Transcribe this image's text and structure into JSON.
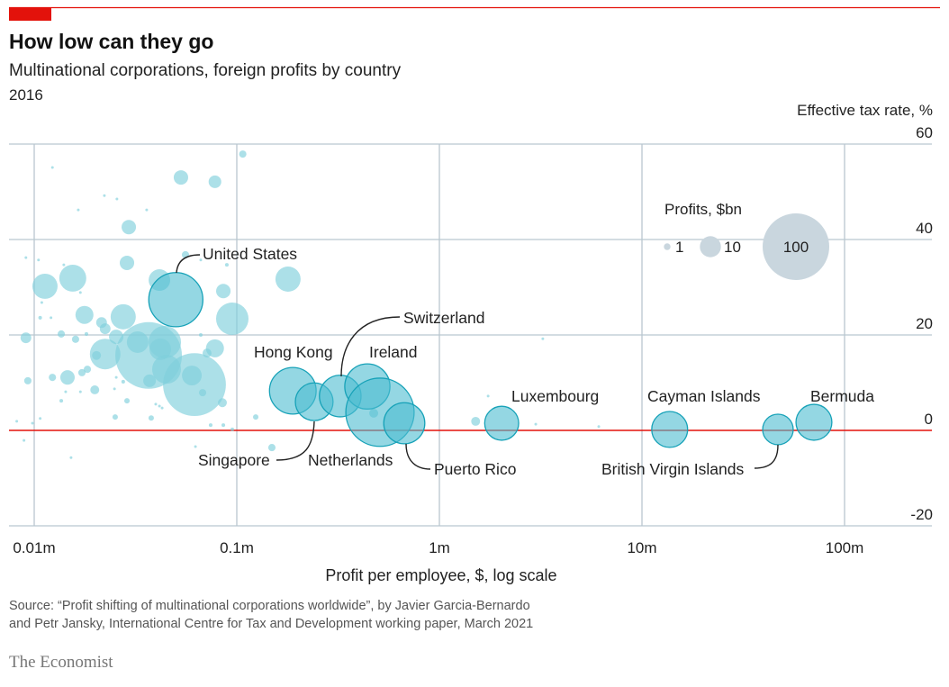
{
  "header": {
    "title": "How low can they go",
    "subtitle": "Multinational corporations, foreign profits by country",
    "year": "2016"
  },
  "colors": {
    "accent": "#e3120b",
    "bubble": "#7fd0dc",
    "bubble_highlight": "#4dbdd0",
    "bubble_stroke": "#17a2b8",
    "legend": "#c9d6de",
    "grid": "#b9c7d0"
  },
  "chart_data": {
    "type": "scatter",
    "title": "How low can they go",
    "xlabel": "Profit per employee, $, log scale",
    "ylabel": "Effective tax rate, %",
    "x_scale": "log",
    "xlim": [
      0.0063,
      126
    ],
    "ylim": [
      -20,
      60
    ],
    "x_ticks": [
      {
        "value": 0.01,
        "label": "0.01m"
      },
      {
        "value": 0.1,
        "label": "0.1m"
      },
      {
        "value": 1,
        "label": "1m"
      },
      {
        "value": 10,
        "label": "10m"
      },
      {
        "value": 100,
        "label": "100m"
      }
    ],
    "y_ticks": [
      {
        "value": 60,
        "label": "60"
      },
      {
        "value": 40,
        "label": "40"
      },
      {
        "value": 20,
        "label": "20"
      },
      {
        "value": 0,
        "label": "0"
      },
      {
        "value": -20,
        "label": "-20"
      }
    ],
    "grid": true,
    "size_legend": {
      "title": "Profits, $bn",
      "entries": [
        {
          "value": 1,
          "label": "1"
        },
        {
          "value": 10,
          "label": "10"
        },
        {
          "value": 100,
          "label": "100"
        }
      ],
      "placement": "top-right"
    },
    "labeled_points": [
      {
        "label": "United States",
        "x": 0.05,
        "y": 27.4,
        "size": 66
      },
      {
        "label": "Hong Kong",
        "x": 0.189,
        "y": 8.3,
        "size": 49
      },
      {
        "label": "Singapore",
        "x": 0.241,
        "y": 6.0,
        "size": 32
      },
      {
        "label": "Switzerland",
        "x": 0.324,
        "y": 7.2,
        "size": 39
      },
      {
        "label": "Ireland",
        "x": 0.441,
        "y": 9.2,
        "size": 46
      },
      {
        "label": "Netherlands",
        "x": 0.509,
        "y": 3.8,
        "size": 105
      },
      {
        "label": "Puerto Rico",
        "x": 0.671,
        "y": 1.5,
        "size": 38
      },
      {
        "label": "Luxembourg",
        "x": 2.03,
        "y": 1.5,
        "size": 26
      },
      {
        "label": "Cayman Islands",
        "x": 13.7,
        "y": 0.2,
        "size": 29
      },
      {
        "label": "British Virgin Islands",
        "x": 46.9,
        "y": 0.2,
        "size": 21
      },
      {
        "label": "Bermuda",
        "x": 70.6,
        "y": 1.7,
        "size": 29
      }
    ],
    "points": [
      {
        "x": 0.107,
        "y": 57.9,
        "size": 1.2
      },
      {
        "x": 0.053,
        "y": 53.0,
        "size": 4.7
      },
      {
        "x": 0.078,
        "y": 52.1,
        "size": 3.6
      },
      {
        "x": 0.0123,
        "y": 55.1,
        "size": 0.16
      },
      {
        "x": 0.0222,
        "y": 49.2,
        "size": 0.16
      },
      {
        "x": 0.0256,
        "y": 48.5,
        "size": 0.16
      },
      {
        "x": 0.0165,
        "y": 46.2,
        "size": 0.16
      },
      {
        "x": 0.0359,
        "y": 46.2,
        "size": 0.16
      },
      {
        "x": 0.0293,
        "y": 42.6,
        "size": 4.7
      },
      {
        "x": 0.0091,
        "y": 36.2,
        "size": 0.16
      },
      {
        "x": 0.0105,
        "y": 35.7,
        "size": 0.16
      },
      {
        "x": 0.014,
        "y": 34.7,
        "size": 0.16
      },
      {
        "x": 0.0287,
        "y": 35.1,
        "size": 4.7
      },
      {
        "x": 0.0558,
        "y": 36.8,
        "size": 1.2
      },
      {
        "x": 0.0664,
        "y": 35.7,
        "size": 0.16
      },
      {
        "x": 0.0893,
        "y": 34.7,
        "size": 0.3
      },
      {
        "x": 0.0113,
        "y": 30.2,
        "size": 14.3
      },
      {
        "x": 0.0155,
        "y": 31.9,
        "size": 16.4
      },
      {
        "x": 0.0415,
        "y": 31.5,
        "size": 10.5
      },
      {
        "x": 0.0858,
        "y": 29.2,
        "size": 4.7
      },
      {
        "x": 0.0169,
        "y": 28.9,
        "size": 0.16
      },
      {
        "x": 0.0109,
        "y": 26.8,
        "size": 0.16
      },
      {
        "x": 0.179,
        "y": 31.7,
        "size": 14.3
      },
      {
        "x": 0.095,
        "y": 23.4,
        "size": 23.7
      },
      {
        "x": 0.0177,
        "y": 24.2,
        "size": 7.3
      },
      {
        "x": 0.0275,
        "y": 23.8,
        "size": 14.3
      },
      {
        "x": 0.0215,
        "y": 22.6,
        "size": 2.6
      },
      {
        "x": 0.0091,
        "y": 19.4,
        "size": 2.6
      },
      {
        "x": 0.0136,
        "y": 20.2,
        "size": 1.2
      },
      {
        "x": 0.016,
        "y": 19.1,
        "size": 1.2
      },
      {
        "x": 0.0181,
        "y": 20.2,
        "size": 0.3
      },
      {
        "x": 0.0224,
        "y": 21.3,
        "size": 2.6
      },
      {
        "x": 0.0254,
        "y": 19.6,
        "size": 4.7
      },
      {
        "x": 0.0324,
        "y": 18.5,
        "size": 10.5
      },
      {
        "x": 0.0367,
        "y": 15.7,
        "size": 100
      },
      {
        "x": 0.0441,
        "y": 18.5,
        "size": 23.7
      },
      {
        "x": 0.0419,
        "y": 17.0,
        "size": 10.5
      },
      {
        "x": 0.0224,
        "y": 16.0,
        "size": 21.1
      },
      {
        "x": 0.0203,
        "y": 15.7,
        "size": 1.8
      },
      {
        "x": 0.045,
        "y": 12.8,
        "size": 18.7
      },
      {
        "x": 0.0618,
        "y": 9.6,
        "size": 89
      },
      {
        "x": 0.06,
        "y": 11.5,
        "size": 8.8
      },
      {
        "x": 0.078,
        "y": 17.2,
        "size": 7.3
      },
      {
        "x": 0.0713,
        "y": 16.2,
        "size": 1.8
      },
      {
        "x": 0.0146,
        "y": 11.1,
        "size": 4.7
      },
      {
        "x": 0.0123,
        "y": 11.1,
        "size": 1.2
      },
      {
        "x": 0.0093,
        "y": 10.4,
        "size": 1.2
      },
      {
        "x": 0.0172,
        "y": 12.1,
        "size": 1.2
      },
      {
        "x": 0.0183,
        "y": 12.8,
        "size": 1.2
      },
      {
        "x": 0.0199,
        "y": 8.5,
        "size": 1.8
      },
      {
        "x": 0.0678,
        "y": 7.9,
        "size": 1.2
      },
      {
        "x": 0.0371,
        "y": 10.4,
        "size": 3.6
      },
      {
        "x": 0.0849,
        "y": 5.8,
        "size": 1.8
      },
      {
        "x": 0.0287,
        "y": 6.2,
        "size": 0.66
      },
      {
        "x": 0.0251,
        "y": 2.8,
        "size": 0.66
      },
      {
        "x": 0.0378,
        "y": 2.6,
        "size": 0.66
      },
      {
        "x": 0.124,
        "y": 2.8,
        "size": 0.66
      },
      {
        "x": 0.149,
        "y": -3.6,
        "size": 1.2
      },
      {
        "x": 0.0136,
        "y": 6.2,
        "size": 0.3
      },
      {
        "x": 0.0143,
        "y": 8.1,
        "size": 0.16
      },
      {
        "x": 0.0169,
        "y": 8.1,
        "size": 0.16
      },
      {
        "x": 0.0249,
        "y": 8.7,
        "size": 0.16
      },
      {
        "x": 0.0254,
        "y": 11.1,
        "size": 0.16
      },
      {
        "x": 0.0275,
        "y": 10.2,
        "size": 0.3
      },
      {
        "x": 0.0107,
        "y": 23.6,
        "size": 0.3
      },
      {
        "x": 0.0121,
        "y": 23.6,
        "size": 0.16
      },
      {
        "x": 0.0082,
        "y": 1.9,
        "size": 0.16
      },
      {
        "x": 0.0098,
        "y": 1.5,
        "size": 0.16
      },
      {
        "x": 0.0107,
        "y": 2.5,
        "size": 0.16
      },
      {
        "x": 0.0089,
        "y": -2.1,
        "size": 0.16
      },
      {
        "x": 0.0152,
        "y": -5.7,
        "size": 0.16
      },
      {
        "x": 0.0625,
        "y": -3.4,
        "size": 0.16
      },
      {
        "x": 0.0743,
        "y": 1.1,
        "size": 0.3
      },
      {
        "x": 0.0858,
        "y": 1.1,
        "size": 0.3
      },
      {
        "x": 0.095,
        "y": 0.2,
        "size": 0.3
      },
      {
        "x": 0.0398,
        "y": 5.5,
        "size": 0.16
      },
      {
        "x": 0.0415,
        "y": 5.1,
        "size": 0.16
      },
      {
        "x": 0.0428,
        "y": 4.7,
        "size": 0.16
      },
      {
        "x": 0.0664,
        "y": 20.0,
        "size": 0.3
      },
      {
        "x": 1.51,
        "y": 1.9,
        "size": 1.8
      },
      {
        "x": 3.24,
        "y": 19.2,
        "size": 0.16
      },
      {
        "x": 2.99,
        "y": 1.3,
        "size": 0.16
      },
      {
        "x": 6.12,
        "y": 0.8,
        "size": 0.16
      },
      {
        "x": 1.74,
        "y": 7.2,
        "size": 0.16
      },
      {
        "x": 0.474,
        "y": 3.6,
        "size": 1.8
      }
    ]
  },
  "footer": {
    "source_line1": "Source: “Profit shifting of multinational corporations worldwide”, by Javier Garcia-Bernardo",
    "source_line2": "and Petr Jansky, International Centre for Tax and Development working paper, March 2021",
    "logo": "The Economist"
  }
}
